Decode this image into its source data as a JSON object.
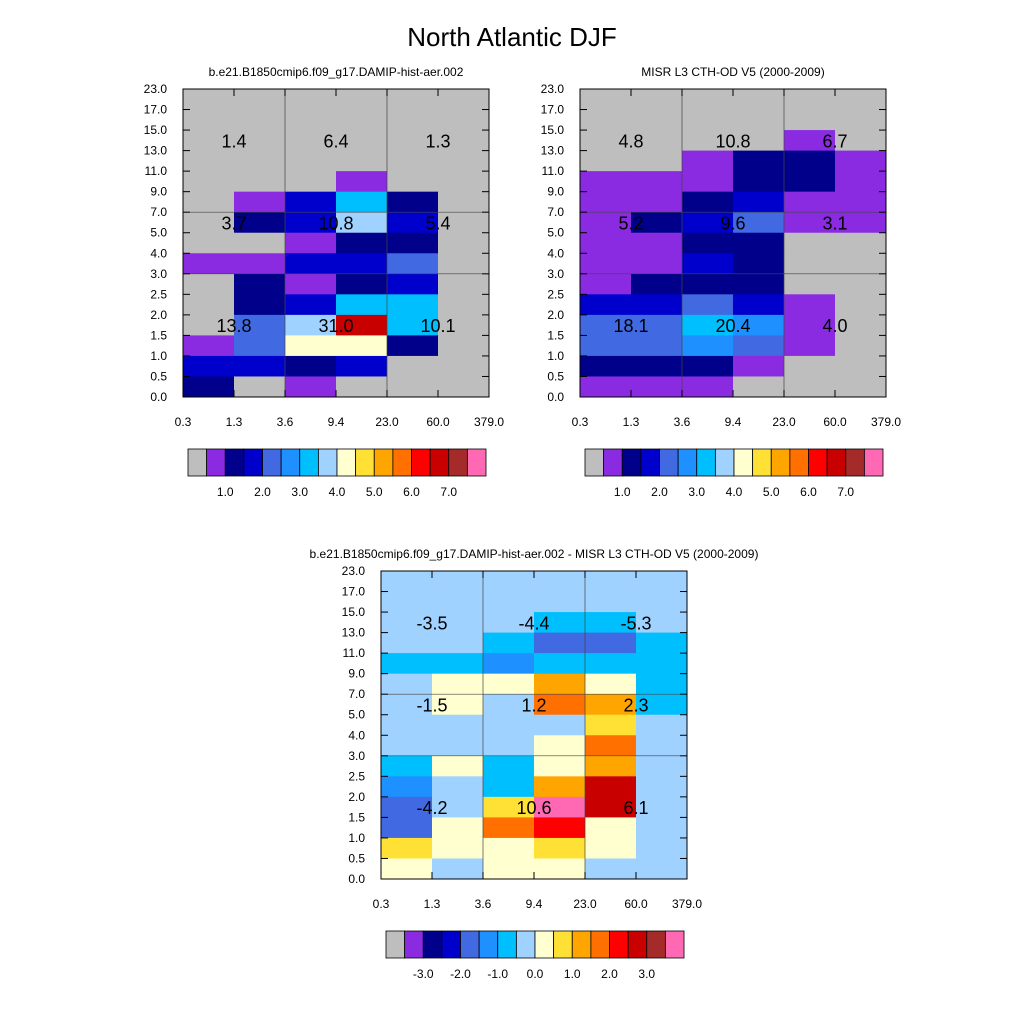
{
  "figure": {
    "title": "North Atlantic DJF"
  },
  "axes": {
    "x_ticks": [
      "0.3",
      "1.3",
      "3.6",
      "9.4",
      "23.0",
      "60.0",
      "379.0"
    ],
    "y_ticks": [
      "0.0",
      "0.5",
      "1.0",
      "1.5",
      "2.0",
      "2.5",
      "3.0",
      "4.0",
      "5.0",
      "7.0",
      "9.0",
      "11.0",
      "13.0",
      "15.0",
      "17.0",
      "23.0"
    ]
  },
  "colorbars": {
    "abs": {
      "labels": [
        "1.0",
        "2.0",
        "3.0",
        "4.0",
        "5.0",
        "6.0",
        "7.0"
      ],
      "colors": [
        "#BEBEBE",
        "#8A2BE2",
        "#00008B",
        "#0000CD",
        "#4169E1",
        "#1E90FF",
        "#00BFFF",
        "#A0D2FF",
        "#FFFFD0",
        "#FFE135",
        "#FFA500",
        "#FF7000",
        "#FF0000",
        "#C80000",
        "#A52A2A",
        "#FF69B4"
      ]
    },
    "diff": {
      "labels": [
        "-3.0",
        "-2.0",
        "-1.0",
        "0.0",
        "1.0",
        "2.0",
        "3.0"
      ],
      "colors": [
        "#BEBEBE",
        "#8A2BE2",
        "#00008B",
        "#0000CD",
        "#4169E1",
        "#1E90FF",
        "#00BFFF",
        "#A0D2FF",
        "#FFFFD0",
        "#FFE135",
        "#FFA500",
        "#FF7000",
        "#FF0000",
        "#C80000",
        "#A52A2A",
        "#FF69B4"
      ]
    }
  },
  "chart_data": [
    {
      "type": "heatmap",
      "title": "b.e21.B1850cmip6.f09_g17.DAMIP-hist-aer.002",
      "colorbar": "abs",
      "x_bins": [
        "0.3",
        "1.3",
        "3.6",
        "9.4",
        "23.0",
        "60.0",
        "379.0"
      ],
      "y_bins": [
        "0.0",
        "0.5",
        "1.0",
        "1.5",
        "2.0",
        "2.5",
        "3.0",
        "4.0",
        "5.0",
        "7.0",
        "9.0",
        "11.0",
        "13.0",
        "15.0",
        "17.0",
        "23.0"
      ],
      "cells_top_to_bottom": [
        [
          0,
          0,
          0,
          0,
          0,
          0
        ],
        [
          0,
          0,
          0,
          0,
          0,
          0
        ],
        [
          0,
          0,
          0,
          0,
          0,
          0
        ],
        [
          0,
          0,
          0,
          0,
          0,
          0
        ],
        [
          0,
          0,
          0,
          1,
          0,
          0
        ],
        [
          0,
          1,
          3,
          6,
          2,
          0
        ],
        [
          0,
          2,
          3,
          7,
          3,
          0
        ],
        [
          0,
          0,
          1,
          2,
          2,
          0
        ],
        [
          1,
          1,
          3,
          3,
          4,
          0
        ],
        [
          0,
          2,
          1,
          2,
          3,
          0
        ],
        [
          0,
          2,
          3,
          6,
          6,
          0
        ],
        [
          0,
          4,
          7,
          13,
          6,
          0
        ],
        [
          1,
          4,
          8,
          8,
          2,
          0
        ],
        [
          3,
          3,
          2,
          3,
          0,
          0
        ],
        [
          2,
          0,
          1,
          0,
          0,
          0
        ]
      ],
      "annotations": [
        {
          "text": "1.4",
          "x_bin": 0,
          "y_bin": 12
        },
        {
          "text": "6.4",
          "x_bin": 1,
          "y_bin": 12
        },
        {
          "text": "1.3",
          "x_bin": 2,
          "y_bin": 12
        },
        {
          "text": "3.7",
          "x_bin": 0,
          "y_bin": 8
        },
        {
          "text": "10.8",
          "x_bin": 1,
          "y_bin": 8
        },
        {
          "text": "5.4",
          "x_bin": 2,
          "y_bin": 8
        },
        {
          "text": "13.8",
          "x_bin": 0,
          "y_bin": 3
        },
        {
          "text": "31.0",
          "x_bin": 1,
          "y_bin": 3
        },
        {
          "text": "10.1",
          "x_bin": 2,
          "y_bin": 3
        }
      ]
    },
    {
      "type": "heatmap",
      "title": "MISR L3 CTH-OD V5 (2000-2009)",
      "colorbar": "abs",
      "x_bins": [
        "0.3",
        "1.3",
        "3.6",
        "9.4",
        "23.0",
        "60.0",
        "379.0"
      ],
      "y_bins": [
        "0.0",
        "0.5",
        "1.0",
        "1.5",
        "2.0",
        "2.5",
        "3.0",
        "4.0",
        "5.0",
        "7.0",
        "9.0",
        "11.0",
        "13.0",
        "15.0",
        "17.0",
        "23.0"
      ],
      "cells_top_to_bottom": [
        [
          0,
          0,
          0,
          0,
          0,
          0
        ],
        [
          0,
          0,
          0,
          0,
          0,
          0
        ],
        [
          0,
          0,
          0,
          0,
          1,
          0
        ],
        [
          0,
          0,
          1,
          2,
          2,
          1
        ],
        [
          1,
          1,
          1,
          2,
          2,
          1
        ],
        [
          1,
          1,
          2,
          3,
          1,
          1
        ],
        [
          1,
          2,
          3,
          4,
          1,
          1
        ],
        [
          1,
          1,
          2,
          2,
          0,
          0
        ],
        [
          1,
          1,
          3,
          2,
          0,
          0
        ],
        [
          1,
          2,
          2,
          2,
          0,
          0
        ],
        [
          3,
          3,
          4,
          3,
          1,
          0
        ],
        [
          4,
          4,
          6,
          5,
          1,
          0
        ],
        [
          4,
          4,
          5,
          4,
          1,
          0
        ],
        [
          2,
          2,
          2,
          1,
          0,
          0
        ],
        [
          1,
          1,
          1,
          0,
          0,
          0
        ]
      ],
      "annotations": [
        {
          "text": "4.8",
          "x_bin": 0,
          "y_bin": 12
        },
        {
          "text": "10.8",
          "x_bin": 1,
          "y_bin": 12
        },
        {
          "text": "6.7",
          "x_bin": 2,
          "y_bin": 12
        },
        {
          "text": "5.2",
          "x_bin": 0,
          "y_bin": 8
        },
        {
          "text": "9.6",
          "x_bin": 1,
          "y_bin": 8
        },
        {
          "text": "3.1",
          "x_bin": 2,
          "y_bin": 8
        },
        {
          "text": "18.1",
          "x_bin": 0,
          "y_bin": 3
        },
        {
          "text": "20.4",
          "x_bin": 1,
          "y_bin": 3
        },
        {
          "text": "4.0",
          "x_bin": 2,
          "y_bin": 3
        }
      ]
    },
    {
      "type": "heatmap",
      "title": "b.e21.B1850cmip6.f09_g17.DAMIP-hist-aer.002 - MISR L3 CTH-OD V5 (2000-2009)",
      "colorbar": "diff",
      "x_bins": [
        "0.3",
        "1.3",
        "3.6",
        "9.4",
        "23.0",
        "60.0",
        "379.0"
      ],
      "y_bins": [
        "0.0",
        "0.5",
        "1.0",
        "1.5",
        "2.0",
        "2.5",
        "3.0",
        "4.0",
        "5.0",
        "7.0",
        "9.0",
        "11.0",
        "13.0",
        "15.0",
        "17.0",
        "23.0"
      ],
      "cells_top_to_bottom": [
        [
          7,
          7,
          7,
          7,
          7,
          7
        ],
        [
          7,
          7,
          7,
          7,
          7,
          7
        ],
        [
          7,
          7,
          7,
          6,
          6,
          7
        ],
        [
          7,
          7,
          6,
          4,
          4,
          6
        ],
        [
          6,
          6,
          5,
          6,
          6,
          6
        ],
        [
          7,
          8,
          8,
          10,
          8,
          6
        ],
        [
          7,
          8,
          7,
          11,
          10,
          6
        ],
        [
          7,
          7,
          7,
          7,
          9,
          7
        ],
        [
          7,
          7,
          7,
          8,
          11,
          7
        ],
        [
          6,
          8,
          6,
          8,
          10,
          7
        ],
        [
          5,
          7,
          6,
          10,
          13,
          7
        ],
        [
          4,
          7,
          9,
          15,
          13,
          7
        ],
        [
          4,
          8,
          11,
          12,
          8,
          7
        ],
        [
          9,
          8,
          8,
          9,
          8,
          7
        ],
        [
          8,
          7,
          8,
          8,
          7,
          7
        ]
      ],
      "annotations": [
        {
          "text": "-3.5",
          "x_bin": 0,
          "y_bin": 12
        },
        {
          "text": "-4.4",
          "x_bin": 1,
          "y_bin": 12
        },
        {
          "text": "-5.3",
          "x_bin": 2,
          "y_bin": 12
        },
        {
          "text": "-1.5",
          "x_bin": 0,
          "y_bin": 8
        },
        {
          "text": "1.2",
          "x_bin": 1,
          "y_bin": 8
        },
        {
          "text": "2.3",
          "x_bin": 2,
          "y_bin": 8
        },
        {
          "text": "-4.2",
          "x_bin": 0,
          "y_bin": 3
        },
        {
          "text": "10.6",
          "x_bin": 1,
          "y_bin": 3
        },
        {
          "text": "6.1",
          "x_bin": 2,
          "y_bin": 3
        }
      ]
    }
  ]
}
